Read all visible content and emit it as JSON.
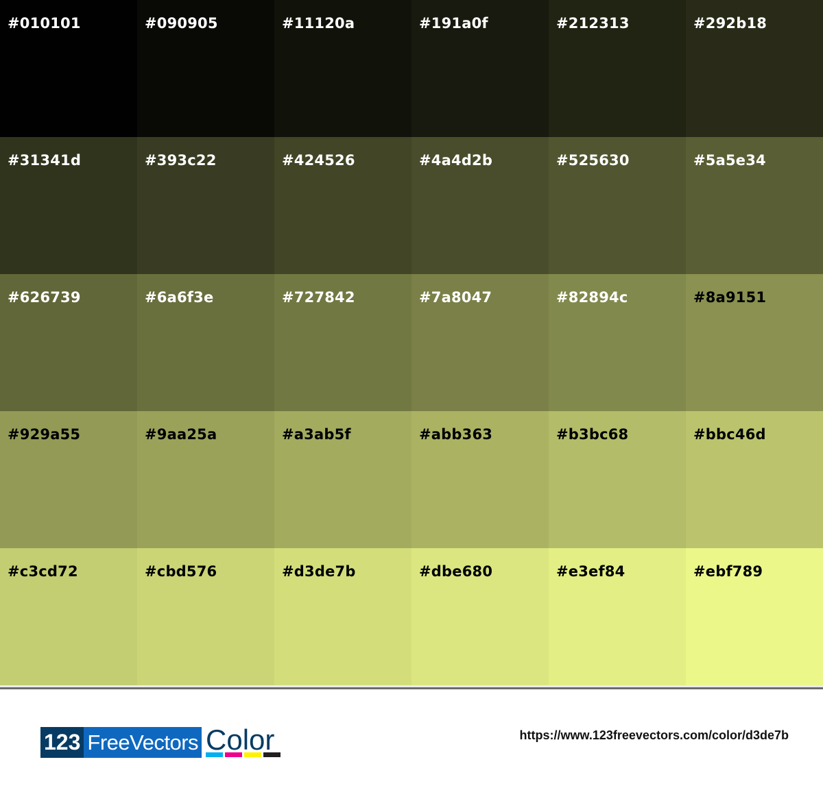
{
  "swatches": [
    {
      "hex": "#010101",
      "text": "#ffffff"
    },
    {
      "hex": "#090905",
      "text": "#ffffff"
    },
    {
      "hex": "#11120a",
      "text": "#ffffff"
    },
    {
      "hex": "#191a0f",
      "text": "#ffffff"
    },
    {
      "hex": "#212313",
      "text": "#ffffff"
    },
    {
      "hex": "#292b18",
      "text": "#ffffff"
    },
    {
      "hex": "#31341d",
      "text": "#ffffff"
    },
    {
      "hex": "#393c22",
      "text": "#ffffff"
    },
    {
      "hex": "#424526",
      "text": "#ffffff"
    },
    {
      "hex": "#4a4d2b",
      "text": "#ffffff"
    },
    {
      "hex": "#525630",
      "text": "#ffffff"
    },
    {
      "hex": "#5a5e34",
      "text": "#ffffff"
    },
    {
      "hex": "#626739",
      "text": "#ffffff"
    },
    {
      "hex": "#6a6f3e",
      "text": "#ffffff"
    },
    {
      "hex": "#727842",
      "text": "#ffffff"
    },
    {
      "hex": "#7a8047",
      "text": "#ffffff"
    },
    {
      "hex": "#82894c",
      "text": "#ffffff"
    },
    {
      "hex": "#8a9151",
      "text": "#000000"
    },
    {
      "hex": "#929a55",
      "text": "#000000"
    },
    {
      "hex": "#9aa25a",
      "text": "#000000"
    },
    {
      "hex": "#a3ab5f",
      "text": "#000000"
    },
    {
      "hex": "#abb363",
      "text": "#000000"
    },
    {
      "hex": "#b3bc68",
      "text": "#000000"
    },
    {
      "hex": "#bbc46d",
      "text": "#000000"
    },
    {
      "hex": "#c3cd72",
      "text": "#000000"
    },
    {
      "hex": "#cbd576",
      "text": "#000000"
    },
    {
      "hex": "#d3de7b",
      "text": "#000000"
    },
    {
      "hex": "#dbe680",
      "text": "#000000"
    },
    {
      "hex": "#e3ef84",
      "text": "#000000"
    },
    {
      "hex": "#ebf789",
      "text": "#000000"
    }
  ],
  "footer": {
    "logo": {
      "part1": "123",
      "part2": "FreeVectors",
      "part3": "Color",
      "bar_colors": [
        "#00b0f0",
        "#ec008c",
        "#fff200",
        "#231f20"
      ]
    },
    "url": "https://www.123freevectors.com/color/d3de7b"
  }
}
